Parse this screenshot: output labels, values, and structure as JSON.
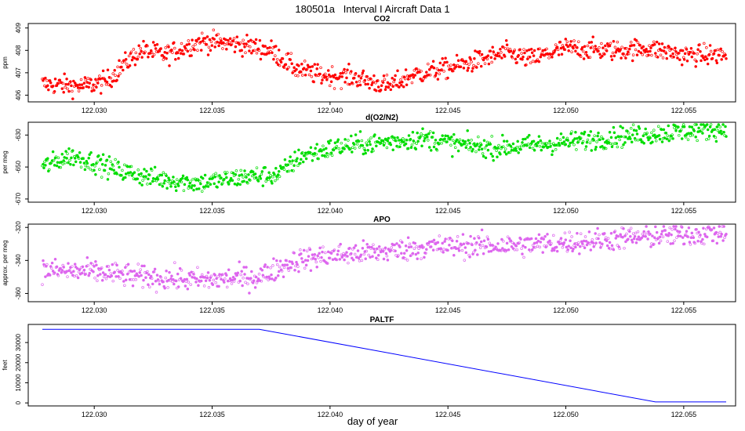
{
  "header": {
    "title": "180501a   Interval I Aircraft Data 1"
  },
  "footer": {
    "xlabel": "day of year"
  },
  "colors": {
    "co2": "#ff0000",
    "o2n2": "#00dd00",
    "apo": "#dd66ee",
    "paltf": "#0000ff"
  },
  "chart_data": [
    {
      "type": "scatter",
      "title": "CO2",
      "ylabel": "ppm",
      "xlim": [
        122.0272,
        122.0572
      ],
      "ylim": [
        405.7,
        409.2
      ],
      "xticks": [
        "122.030",
        "122.035",
        "122.040",
        "122.045",
        "122.050",
        "122.055"
      ],
      "yticks": [
        "406",
        "407",
        "408",
        "409"
      ],
      "x_range": [
        122.0278,
        122.0568
      ],
      "trend": [
        [
          122.0278,
          406.5
        ],
        [
          122.0295,
          406.4
        ],
        [
          122.0305,
          406.6
        ],
        [
          122.0315,
          407.6
        ],
        [
          122.032,
          408.0
        ],
        [
          122.033,
          407.8
        ],
        [
          122.0345,
          408.4
        ],
        [
          122.036,
          408.3
        ],
        [
          122.0375,
          408.0
        ],
        [
          122.0385,
          407.2
        ],
        [
          122.0395,
          406.9
        ],
        [
          122.041,
          406.8
        ],
        [
          122.0425,
          406.4
        ],
        [
          122.0435,
          406.9
        ],
        [
          122.045,
          407.2
        ],
        [
          122.0465,
          407.6
        ],
        [
          122.0475,
          407.9
        ],
        [
          122.0485,
          407.6
        ],
        [
          122.05,
          408.1
        ],
        [
          122.052,
          408.0
        ],
        [
          122.0535,
          408.1
        ],
        [
          122.055,
          407.8
        ],
        [
          122.0568,
          407.8
        ]
      ],
      "noise": 0.32
    },
    {
      "type": "scatter",
      "title": "d(O2/N2)",
      "ylabel": "per meg",
      "xlim": [
        122.0272,
        122.0572
      ],
      "ylim": [
        -672,
        -622
      ],
      "xticks": [
        "122.030",
        "122.035",
        "122.040",
        "122.045",
        "122.050",
        "122.055"
      ],
      "yticks": [
        "-670",
        "-650",
        "-630"
      ],
      "x_range": [
        122.0278,
        122.0568
      ],
      "trend": [
        [
          122.0278,
          -650
        ],
        [
          122.029,
          -643
        ],
        [
          122.03,
          -647
        ],
        [
          122.031,
          -652
        ],
        [
          122.0325,
          -657
        ],
        [
          122.0345,
          -660
        ],
        [
          122.0365,
          -656
        ],
        [
          122.0378,
          -655
        ],
        [
          122.0388,
          -643
        ],
        [
          122.0405,
          -637
        ],
        [
          122.042,
          -635
        ],
        [
          122.044,
          -632
        ],
        [
          122.0455,
          -636
        ],
        [
          122.047,
          -638
        ],
        [
          122.049,
          -636
        ],
        [
          122.051,
          -633
        ],
        [
          122.053,
          -630
        ],
        [
          122.0568,
          -626
        ]
      ],
      "noise": 4.5
    },
    {
      "type": "scatter",
      "title": "APO",
      "ylabel": "approx. per meg",
      "xlim": [
        122.0272,
        122.0572
      ],
      "ylim": [
        -365,
        -318
      ],
      "xticks": [
        "122.030",
        "122.035",
        "122.040",
        "122.045",
        "122.050",
        "122.055"
      ],
      "yticks": [
        "-360",
        "-340",
        "-320"
      ],
      "x_range": [
        122.0278,
        122.0568
      ],
      "trend": [
        [
          122.0278,
          -346
        ],
        [
          122.03,
          -347
        ],
        [
          122.032,
          -350
        ],
        [
          122.0345,
          -352
        ],
        [
          122.037,
          -350
        ],
        [
          122.0385,
          -340
        ],
        [
          122.04,
          -337
        ],
        [
          122.042,
          -335
        ],
        [
          122.044,
          -332
        ],
        [
          122.046,
          -331
        ],
        [
          122.048,
          -331
        ],
        [
          122.05,
          -329
        ],
        [
          122.053,
          -326
        ],
        [
          122.0568,
          -323
        ]
      ],
      "noise": 5.0
    },
    {
      "type": "line",
      "title": "PALTF",
      "ylabel": "feet",
      "xlim": [
        122.0272,
        122.0572
      ],
      "ylim": [
        -1500,
        39000
      ],
      "xticks": [
        "122.030",
        "122.035",
        "122.040",
        "122.045",
        "122.050",
        "122.055"
      ],
      "yticks": [
        "0",
        "10000",
        "20000",
        "30000"
      ],
      "x": [
        122.0278,
        122.037,
        122.0538,
        122.0568
      ],
      "y": [
        36600,
        36600,
        500,
        500
      ]
    }
  ]
}
